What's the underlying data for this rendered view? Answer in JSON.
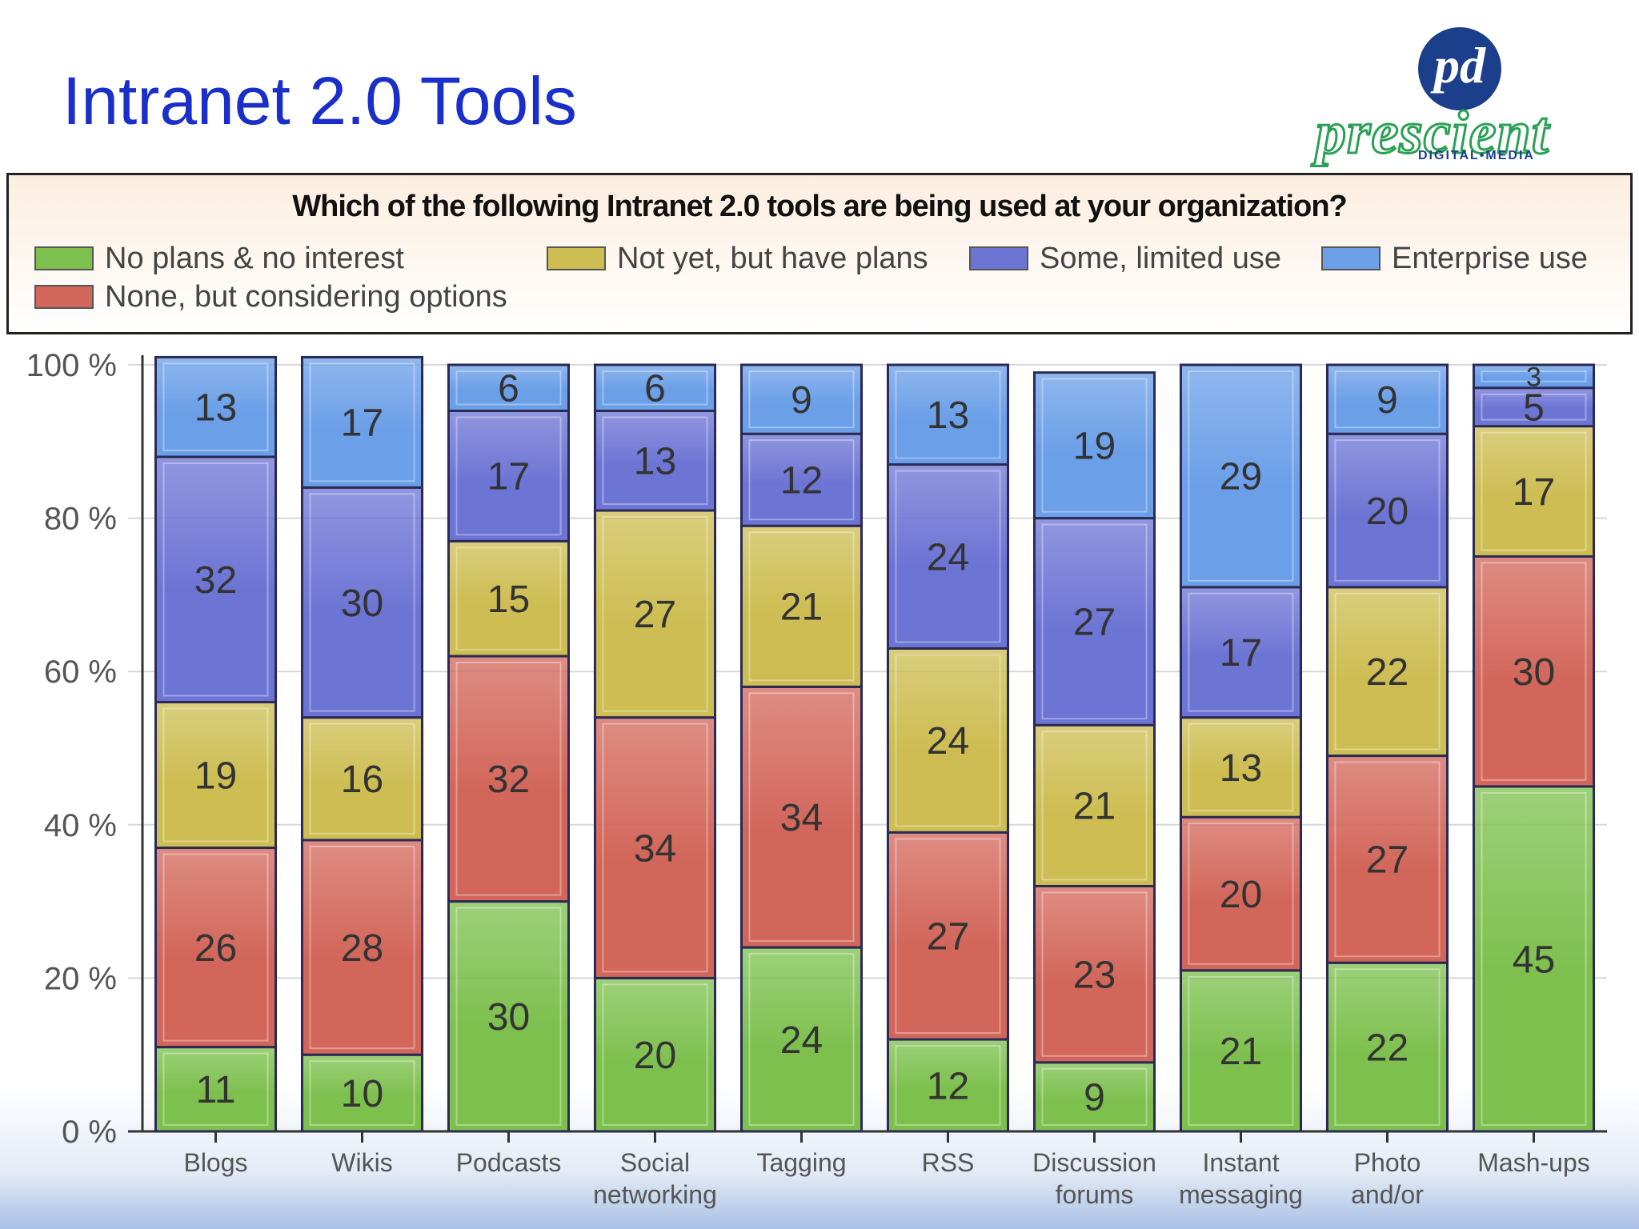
{
  "slide": {
    "title": "Intranet 2.0 Tools"
  },
  "logo": {
    "monogram": "pd",
    "word": "prescient",
    "subtitle": "DIGITAL•MEDIA"
  },
  "colors": {
    "title": "#1a2fc9",
    "no_plans": "#7dc04e",
    "considering": "#d2665a",
    "not_yet": "#cdbd52",
    "some_use": "#6c74d4",
    "enterprise": "#6b9fe8"
  },
  "chart_data": {
    "type": "bar",
    "stacked": true,
    "title": "Which of the following Intranet 2.0 tools are being used at your organization?",
    "categories": [
      [
        "Blogs"
      ],
      [
        "Wikis"
      ],
      [
        "Podcasts"
      ],
      [
        "Social",
        "networking"
      ],
      [
        "Tagging"
      ],
      [
        "RSS"
      ],
      [
        "Discussion",
        "forums"
      ],
      [
        "Instant",
        "messaging"
      ],
      [
        "Photo",
        "and/or"
      ],
      [
        "Mash-ups"
      ]
    ],
    "series": [
      {
        "name": "No plans & no interest",
        "color": "#7dc04e",
        "values": [
          11,
          10,
          30,
          20,
          24,
          12,
          9,
          21,
          22,
          45
        ]
      },
      {
        "name": "None, but considering options",
        "color": "#d2665a",
        "values": [
          26,
          28,
          32,
          34,
          34,
          27,
          23,
          20,
          27,
          30
        ]
      },
      {
        "name": "Not yet, but have plans",
        "color": "#cdbd52",
        "values": [
          19,
          16,
          15,
          27,
          21,
          24,
          21,
          13,
          22,
          17
        ]
      },
      {
        "name": "Some, limited use",
        "color": "#6c74d4",
        "values": [
          32,
          30,
          17,
          13,
          12,
          24,
          27,
          17,
          20,
          5
        ]
      },
      {
        "name": "Enterprise use",
        "color": "#6b9fe8",
        "values": [
          13,
          17,
          6,
          6,
          9,
          13,
          19,
          29,
          9,
          3
        ]
      }
    ],
    "ylim": [
      0,
      100
    ],
    "yticks": [
      "0 %",
      "20 %",
      "40 %",
      "60 %",
      "80 %",
      "100 %"
    ],
    "legend_position": "top",
    "grid": true
  }
}
